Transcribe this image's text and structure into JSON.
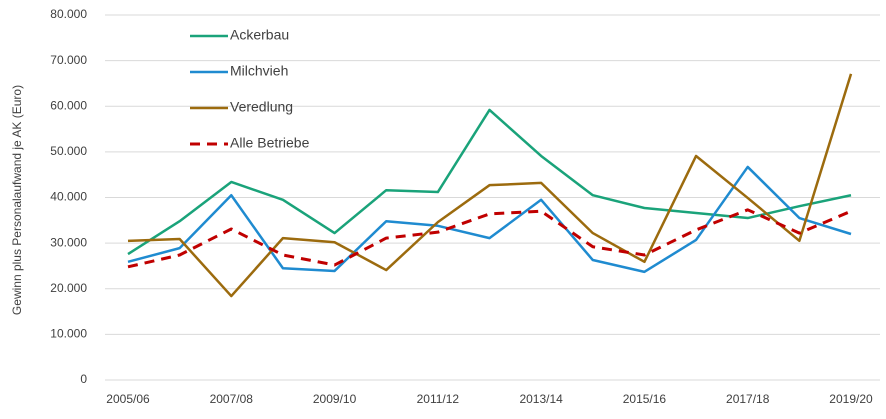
{
  "chart_data": {
    "type": "line",
    "y_label": "Gewinn plus Personalaufwand je AK (Euro)",
    "categories": [
      "2005/06",
      null,
      "2007/08",
      null,
      "2009/10",
      null,
      "2011/12",
      null,
      "2013/14",
      null,
      "2015/16",
      null,
      "2017/18",
      null,
      "2019/20"
    ],
    "series": [
      {
        "name": "Ackerbau",
        "color": "#1aa37a",
        "values": [
          27600,
          34800,
          43400,
          39500,
          32200,
          41600,
          41200,
          59200,
          49100,
          40500,
          37700,
          36600,
          35500,
          38100,
          40500
        ]
      },
      {
        "name": "Milchvieh",
        "color": "#1f8bd0",
        "values": [
          25900,
          28900,
          40500,
          24500,
          23900,
          34800,
          33800,
          31100,
          39500,
          26300,
          23700,
          30700,
          46700,
          35500,
          32000
        ]
      },
      {
        "name": "Veredlung",
        "color": "#9c6b0e",
        "values": [
          30500,
          30900,
          18400,
          31100,
          30200,
          24100,
          34600,
          42700,
          43200,
          32200,
          25900,
          49100,
          39900,
          30500,
          67100
        ]
      },
      {
        "name": "Alle Betriebe",
        "color": "#c00000",
        "dash": true,
        "values": [
          24800,
          27400,
          33100,
          27400,
          25200,
          31100,
          32400,
          36400,
          37000,
          29200,
          27400,
          32900,
          37300,
          32200,
          37000
        ]
      }
    ],
    "ylim": [
      0,
      80000
    ],
    "yticks": [
      0,
      {
        "value": 10000,
        "label": "10.000"
      },
      {
        "value": 20000,
        "label": "20.000"
      },
      {
        "value": 30000,
        "label": "30.000"
      },
      {
        "value": 40000,
        "label": "40.000"
      },
      {
        "value": 50000,
        "label": "50.000"
      },
      {
        "value": 60000,
        "label": "60.000"
      },
      {
        "value": 70000,
        "label": "70.000"
      },
      {
        "value": 80000,
        "label": "80.000"
      }
    ],
    "grid": true,
    "legend": "upper-left"
  }
}
